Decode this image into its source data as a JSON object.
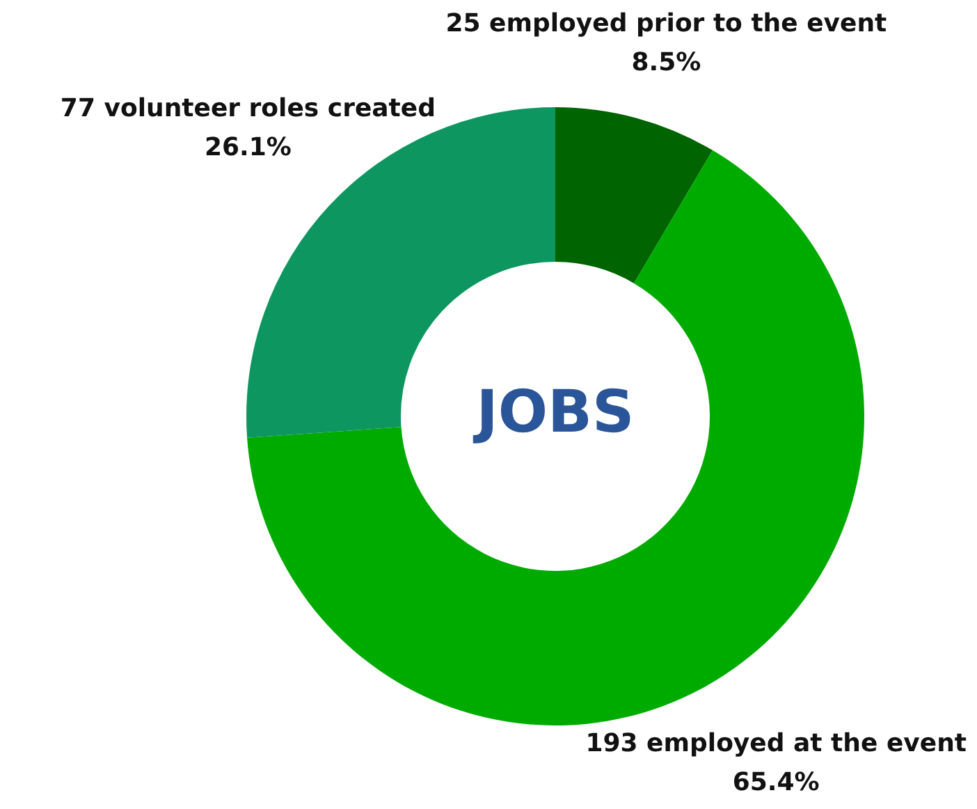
{
  "chart_data": {
    "type": "donut",
    "title": "JOBS",
    "categories": [
      "25 employed prior to the event",
      "193 employed at the event",
      "77 volunteer roles created"
    ],
    "values": [
      8.5,
      65.4,
      26.1
    ],
    "colors": [
      "#006400",
      "#00ab00",
      "#0e9660"
    ],
    "value_labels": [
      "8.5%",
      "65.4%",
      "26.1%"
    ],
    "legend": false
  }
}
